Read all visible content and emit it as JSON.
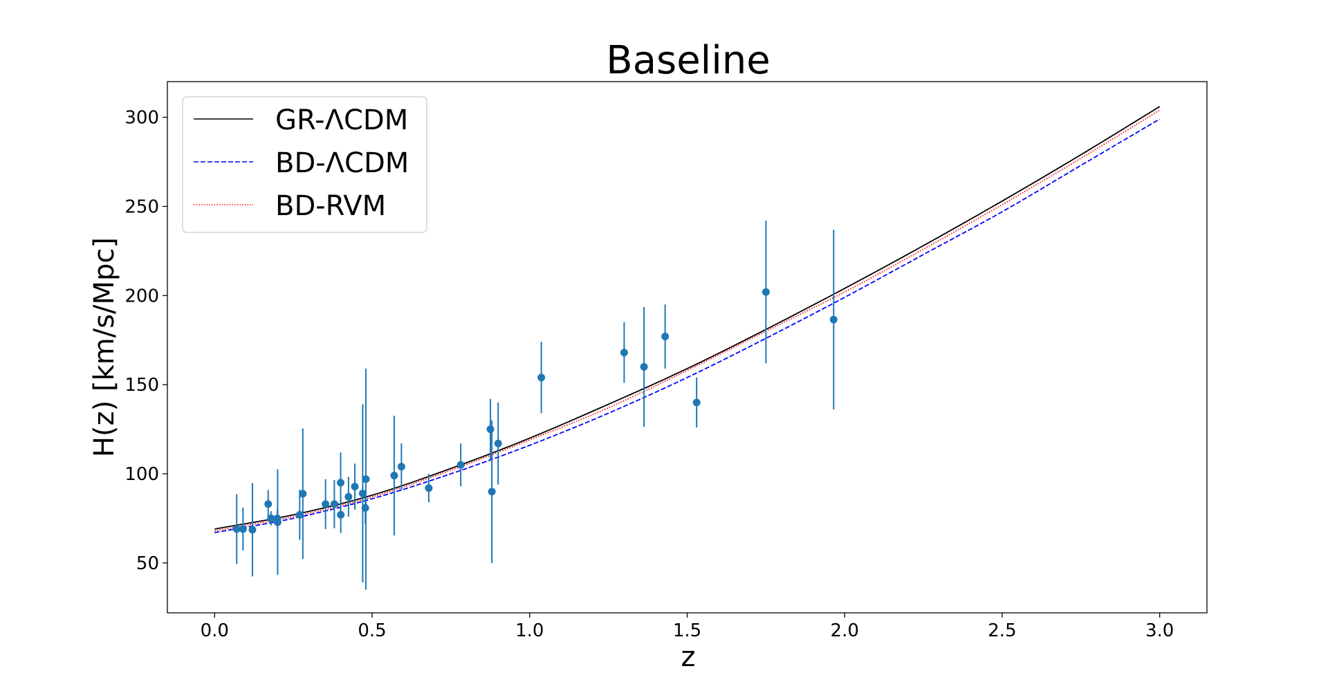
{
  "chart_data": {
    "type": "line",
    "title": "Baseline",
    "xlabel": "z",
    "ylabel": "H(z)  [km/s/Mpc]",
    "xlim": [
      -0.15,
      3.15
    ],
    "ylim": [
      22,
      320
    ],
    "xticks": [
      0.0,
      0.5,
      1.0,
      1.5,
      2.0,
      2.5,
      3.0
    ],
    "xtick_labels": [
      "0.0",
      "0.5",
      "1.0",
      "1.5",
      "2.0",
      "2.5",
      "3.0"
    ],
    "yticks": [
      50,
      100,
      150,
      200,
      250,
      300
    ],
    "ytick_labels": [
      "50",
      "100",
      "150",
      "200",
      "250",
      "300"
    ],
    "grid": false,
    "legend_position": "top-left",
    "colors": {
      "gr": "#000000",
      "bd_lcdm": "#0000ff",
      "bd_rvm": "#ff0000",
      "data": "#1f77b4"
    },
    "series": [
      {
        "name": "GR-ΛCDM",
        "style": "solid",
        "color": "#000000",
        "x": [
          0.0,
          0.25,
          0.5,
          0.75,
          1.0,
          1.25,
          1.5,
          1.75,
          2.0,
          2.25,
          2.5,
          2.75,
          3.0
        ],
        "y": [
          69,
          77,
          88,
          103,
          120,
          139,
          159,
          181,
          204,
          228,
          253,
          279,
          306
        ]
      },
      {
        "name": "BD-ΛCDM",
        "style": "dashed",
        "color": "#0000ff",
        "x": [
          0.0,
          0.25,
          0.5,
          0.75,
          1.0,
          1.25,
          1.5,
          1.75,
          2.0,
          2.25,
          2.5,
          2.75,
          3.0
        ],
        "y": [
          67,
          75,
          86,
          100,
          116,
          134,
          154,
          176,
          199,
          223,
          247,
          273,
          299
        ]
      },
      {
        "name": "BD-RVM",
        "style": "dotted",
        "color": "#ff0000",
        "x": [
          0.0,
          0.25,
          0.5,
          0.75,
          1.0,
          1.25,
          1.5,
          1.75,
          2.0,
          2.25,
          2.5,
          2.75,
          3.0
        ],
        "y": [
          68,
          76,
          87,
          102,
          119,
          137,
          158,
          180,
          202,
          226,
          251,
          277,
          304
        ]
      }
    ],
    "data_points": [
      {
        "z": 0.07,
        "H": 69,
        "err": 19.6
      },
      {
        "z": 0.09,
        "H": 69,
        "err": 12
      },
      {
        "z": 0.12,
        "H": 68.6,
        "err": 26.2
      },
      {
        "z": 0.17,
        "H": 83,
        "err": 8
      },
      {
        "z": 0.179,
        "H": 75,
        "err": 4
      },
      {
        "z": 0.199,
        "H": 75,
        "err": 5
      },
      {
        "z": 0.2,
        "H": 72.9,
        "err": 29.6
      },
      {
        "z": 0.27,
        "H": 77,
        "err": 14
      },
      {
        "z": 0.28,
        "H": 88.8,
        "err": 36.6
      },
      {
        "z": 0.352,
        "H": 83,
        "err": 14
      },
      {
        "z": 0.38,
        "H": 83,
        "err": 13.5
      },
      {
        "z": 0.4,
        "H": 95,
        "err": 17
      },
      {
        "z": 0.4004,
        "H": 77,
        "err": 10.2
      },
      {
        "z": 0.425,
        "H": 87.1,
        "err": 11.2
      },
      {
        "z": 0.445,
        "H": 92.8,
        "err": 12.9
      },
      {
        "z": 0.47,
        "H": 89,
        "err": 50
      },
      {
        "z": 0.4783,
        "H": 80.9,
        "err": 9
      },
      {
        "z": 0.48,
        "H": 97,
        "err": 62
      },
      {
        "z": 0.5929,
        "H": 104,
        "err": 13
      },
      {
        "z": 0.57,
        "H": 99,
        "err": 33.6
      },
      {
        "z": 0.6797,
        "H": 92,
        "err": 8
      },
      {
        "z": 0.7812,
        "H": 105,
        "err": 12
      },
      {
        "z": 0.8754,
        "H": 125,
        "err": 17
      },
      {
        "z": 0.88,
        "H": 90,
        "err": 40
      },
      {
        "z": 0.9,
        "H": 117,
        "err": 23
      },
      {
        "z": 1.037,
        "H": 154,
        "err": 20
      },
      {
        "z": 1.3,
        "H": 168,
        "err": 17
      },
      {
        "z": 1.363,
        "H": 160,
        "err": 33.6
      },
      {
        "z": 1.43,
        "H": 177,
        "err": 18
      },
      {
        "z": 1.53,
        "H": 140,
        "err": 14
      },
      {
        "z": 1.75,
        "H": 202,
        "err": 40
      },
      {
        "z": 1.965,
        "H": 186.5,
        "err": 50.4
      }
    ]
  }
}
